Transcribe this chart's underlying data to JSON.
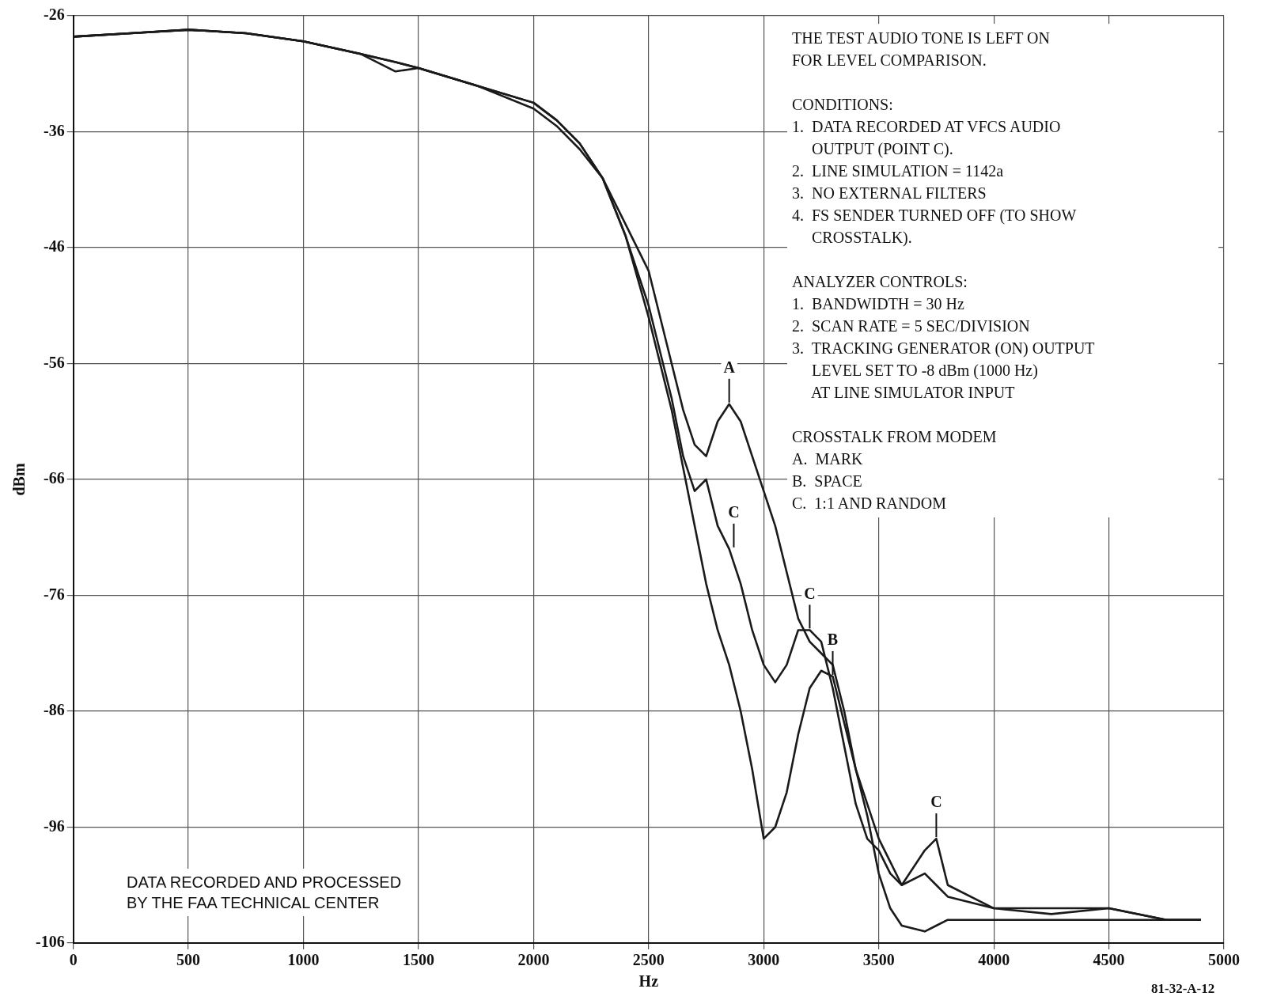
{
  "chart_data": {
    "type": "line",
    "xlabel": "Hz",
    "ylabel": "dBm",
    "x": [
      0,
      250,
      500,
      750,
      1000,
      1250,
      1400,
      1500,
      1750,
      2000,
      2100,
      2200,
      2300,
      2400,
      2500,
      2600,
      2650,
      2700,
      2750,
      2800,
      2850,
      2900,
      2950,
      3000,
      3050,
      3100,
      3150,
      3200,
      3250,
      3300,
      3350,
      3400,
      3450,
      3500,
      3550,
      3600,
      3700,
      3750,
      3800,
      4000,
      4250,
      4500,
      4750,
      4900
    ],
    "series": [
      {
        "color": "#1a1a1a",
        "values": [
          -27.8,
          -27.5,
          -27.2,
          -27.5,
          -28.2,
          -29.3,
          -30.8,
          -30.5,
          -32,
          -34,
          -35.5,
          -37.5,
          -40,
          -44,
          -48,
          -56,
          -60,
          -63,
          -64,
          -61,
          -59.5,
          -61,
          -64,
          -67,
          -70,
          -74,
          -78,
          -80,
          -81,
          -82,
          -86,
          -91,
          -94,
          -97,
          -99,
          -101,
          -100,
          -101,
          -102,
          -103,
          -103.5,
          -103,
          -104,
          -104
        ]
      },
      {
        "color": "#1a1a1a",
        "values": [
          -27.8,
          -27.5,
          -27.2,
          -27.5,
          -28.2,
          -29.3,
          -30,
          -30.5,
          -32,
          -33.5,
          -35,
          -37,
          -40,
          -45,
          -51,
          -59,
          -64,
          -67,
          -66,
          -70,
          -72,
          -75,
          -79,
          -82,
          -83.5,
          -82,
          -79,
          -79,
          -80,
          -84,
          -89,
          -94,
          -97,
          -98,
          -100,
          -101,
          -98,
          -97,
          -101,
          -103,
          -103,
          -103,
          -104,
          -104
        ]
      },
      {
        "color": "#1a1a1a",
        "values": [
          -27.8,
          -27.5,
          -27.2,
          -27.5,
          -28.2,
          -29.3,
          -30,
          -30.5,
          -32,
          -33.5,
          -35,
          -37,
          -40,
          -45,
          -52,
          -60,
          -65,
          -70,
          -75,
          -79,
          -82,
          -86,
          -91,
          -97,
          -96,
          -93,
          -88,
          -84,
          -82.5,
          -83,
          -87,
          -91,
          -95,
          -100,
          -103,
          -104.5,
          -105,
          -104.5,
          -104,
          -104,
          -104,
          -104,
          -104,
          -104
        ]
      }
    ],
    "xlim": [
      0,
      5000
    ],
    "xticks": [
      {
        "value": 0,
        "label": "0"
      },
      500,
      1000,
      1500,
      2000,
      2500,
      3000,
      3500,
      4000,
      4500,
      5000
    ],
    "ylim": [
      -106,
      -26
    ],
    "yticks": [
      -106,
      -96,
      -86,
      -76,
      -66,
      -56,
      -46,
      -36,
      -26
    ],
    "grid": true,
    "marker": "none",
    "line_style": "solid",
    "annotations": [
      {
        "text": "A",
        "x": 2850,
        "y": -59.5
      },
      {
        "text": "C",
        "x": 2870,
        "y": -72
      },
      {
        "text": "C",
        "x": 3200,
        "y": -79
      },
      {
        "text": "B",
        "x": 3300,
        "y": -83
      },
      {
        "text": "C",
        "x": 3750,
        "y": -97
      },
      "THE TEST AUDIO TONE IS LEFT ON\nFOR LEVEL COMPARISON.",
      "CONDITIONS:\n1.  DATA RECORDED AT VFCS AUDIO\n     OUTPUT (POINT C).\n2.  LINE SIMULATION = 1142a\n3.  NO EXTERNAL FILTERS\n4.  FS SENDER TURNED OFF (TO SHOW\n     CROSSTALK).",
      "ANALYZER CONTROLS:\n1.  BANDWIDTH = 30 Hz\n2.  SCAN RATE = 5 SEC/DIVISION\n3.  TRACKING GENERATOR (ON) OUTPUT\n     LEVEL SET TO -8 dBm (1000 Hz)\n     AT LINE SIMULATOR INPUT",
      "CROSSTALK FROM MODEM\nA.  MARK\nB.  SPACE\nC.  1:1 AND RANDOM",
      "DATA RECORDED AND PROCESSED\nBY THE FAA TECHNICAL CENTER",
      "81-32-A-12"
    ]
  }
}
